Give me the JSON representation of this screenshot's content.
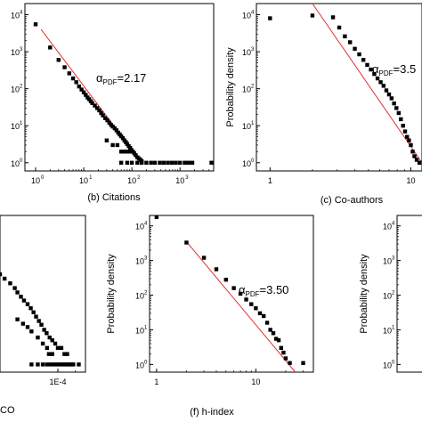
{
  "chart_data": [
    {
      "type": "scatter",
      "panel": "b",
      "xlabel": "(b) Citations",
      "ylabel": "",
      "x_scale": "log",
      "y_scale": "log",
      "xlim": [
        0.6,
        5000
      ],
      "ylim": [
        0.6,
        20000
      ],
      "x_ticks": [
        {
          "v": 1,
          "label": "10"
        },
        {
          "v": 10,
          "label": "10"
        },
        {
          "v": 100,
          "label": "10"
        },
        {
          "v": 1000,
          "label": "10"
        }
      ],
      "x_tick_exps": [
        "0",
        "1",
        "2",
        "3"
      ],
      "y_ticks": [
        {
          "v": 1,
          "label": "10"
        },
        {
          "v": 10,
          "label": "10"
        },
        {
          "v": 100,
          "label": "10"
        },
        {
          "v": 1000,
          "label": "10"
        },
        {
          "v": 10000,
          "label": "10"
        }
      ],
      "y_tick_exps": [
        "0",
        "1",
        "2",
        "3",
        "4"
      ],
      "annotation": {
        "prefix": "α",
        "sub": "PDF",
        "suffix": "=2.17"
      },
      "fit": {
        "x": [
          1.3,
          160
        ],
        "y": [
          4000,
          1
        ],
        "color": "#e03030"
      },
      "points": [
        [
          1,
          5500
        ],
        [
          2,
          1300
        ],
        [
          3,
          600
        ],
        [
          4,
          380
        ],
        [
          5,
          260
        ],
        [
          6,
          190
        ],
        [
          7,
          150
        ],
        [
          8,
          115
        ],
        [
          9,
          95
        ],
        [
          10,
          80
        ],
        [
          11,
          68
        ],
        [
          12,
          58
        ],
        [
          13,
          52
        ],
        [
          14,
          46
        ],
        [
          15,
          41
        ],
        [
          17,
          35
        ],
        [
          19,
          30
        ],
        [
          21,
          26
        ],
        [
          23,
          22
        ],
        [
          25,
          19
        ],
        [
          28,
          16
        ],
        [
          31,
          14
        ],
        [
          34,
          12
        ],
        [
          37,
          10.5
        ],
        [
          40,
          9.5
        ],
        [
          44,
          8.5
        ],
        [
          48,
          7.5
        ],
        [
          52,
          6.5
        ],
        [
          56,
          5.8
        ],
        [
          60,
          5.2
        ],
        [
          65,
          4.6
        ],
        [
          70,
          4
        ],
        [
          75,
          3.6
        ],
        [
          80,
          3.2
        ],
        [
          86,
          2.8
        ],
        [
          92,
          2.5
        ],
        [
          98,
          2.2
        ],
        [
          105,
          2
        ],
        [
          112,
          1.8
        ],
        [
          120,
          1.6
        ],
        [
          130,
          1.4
        ],
        [
          140,
          1.3
        ],
        [
          150,
          1.2
        ],
        [
          160,
          1.1
        ],
        [
          30,
          4
        ],
        [
          40,
          3
        ],
        [
          50,
          3
        ],
        [
          60,
          2
        ],
        [
          70,
          2
        ],
        [
          80,
          2
        ],
        [
          90,
          2
        ],
        [
          100,
          2
        ],
        [
          60,
          1
        ],
        [
          80,
          1
        ],
        [
          100,
          1
        ],
        [
          130,
          1
        ],
        [
          160,
          1
        ],
        [
          200,
          1
        ],
        [
          250,
          1
        ],
        [
          300,
          1
        ],
        [
          380,
          1
        ],
        [
          460,
          1
        ],
        [
          560,
          1
        ],
        [
          680,
          1
        ],
        [
          820,
          1
        ],
        [
          1000,
          1
        ],
        [
          1250,
          1
        ],
        [
          1500,
          1
        ],
        [
          1800,
          1
        ],
        [
          4500,
          1
        ]
      ]
    },
    {
      "type": "scatter",
      "panel": "c",
      "xlabel": "(c) Co-authors",
      "ylabel": "Probability density",
      "x_scale": "log",
      "y_scale": "log",
      "xlim": [
        0.8,
        12
      ],
      "ylim": [
        0.6,
        20000
      ],
      "x_ticks": [
        {
          "v": 1,
          "label": "1"
        },
        {
          "v": 10,
          "label": "10"
        }
      ],
      "x_tick_exps": [
        "",
        ""
      ],
      "y_ticks": [
        {
          "v": 1,
          "label": "10"
        },
        {
          "v": 10,
          "label": "10"
        },
        {
          "v": 100,
          "label": "10"
        },
        {
          "v": 1000,
          "label": "10"
        },
        {
          "v": 10000,
          "label": "10"
        }
      ],
      "y_tick_exps": [
        "0",
        "1",
        "2",
        "3",
        "4"
      ],
      "annotation": {
        "prefix": "α",
        "sub": "PDF",
        "suffix": "=3.5"
      },
      "fit": {
        "x": [
          2,
          12
        ],
        "y": [
          20000,
          1
        ],
        "color": "#e03030"
      },
      "points": [
        [
          1,
          8000
        ],
        [
          2,
          9500
        ],
        [
          2.8,
          8500
        ],
        [
          3.1,
          4500
        ],
        [
          3.4,
          2600
        ],
        [
          3.7,
          1800
        ],
        [
          4,
          1200
        ],
        [
          4.3,
          850
        ],
        [
          4.6,
          600
        ],
        [
          4.9,
          440
        ],
        [
          5.2,
          330
        ],
        [
          5.5,
          250
        ],
        [
          5.8,
          190
        ],
        [
          6.1,
          150
        ],
        [
          6.4,
          120
        ],
        [
          6.7,
          90
        ],
        [
          7,
          70
        ],
        [
          7.3,
          55
        ],
        [
          7.6,
          40
        ],
        [
          7.9,
          30
        ],
        [
          8.2,
          22
        ],
        [
          8.5,
          15
        ],
        [
          8.8,
          10
        ],
        [
          9.1,
          7
        ],
        [
          9.4,
          5
        ],
        [
          9.7,
          4
        ],
        [
          10,
          3
        ],
        [
          10.3,
          2
        ],
        [
          10.6,
          1.5
        ],
        [
          11,
          1.2
        ],
        [
          11.5,
          1
        ]
      ]
    },
    {
      "type": "scatter",
      "panel": "e",
      "xlabel": "CO",
      "ylabel": "",
      "x_scale": "log",
      "y_scale": "log",
      "xlim": [
        1e-05,
        0.0003
      ],
      "ylim": [
        0.6,
        20000
      ],
      "x_ticks": [
        {
          "v": 0.0001,
          "label": "1E-4"
        }
      ],
      "x_tick_exps": [
        ""
      ],
      "y_ticks": [],
      "y_tick_exps": [],
      "annotation": null,
      "fit": null,
      "points": [
        [
          1e-05,
          400
        ],
        [
          1.2e-05,
          300
        ],
        [
          1.5e-05,
          220
        ],
        [
          1.8e-05,
          160
        ],
        [
          2e-05,
          120
        ],
        [
          2.3e-05,
          90
        ],
        [
          2.6e-05,
          70
        ],
        [
          3e-05,
          55
        ],
        [
          3.4e-05,
          42
        ],
        [
          3.8e-05,
          32
        ],
        [
          4.2e-05,
          24
        ],
        [
          4.7e-05,
          18
        ],
        [
          5.2e-05,
          14
        ],
        [
          5.8e-05,
          10
        ],
        [
          6.4e-05,
          8
        ],
        [
          7.2e-05,
          6
        ],
        [
          8e-05,
          5
        ],
        [
          9e-05,
          4
        ],
        [
          0.0001,
          3
        ],
        [
          0.000115,
          3
        ],
        [
          0.00013,
          2
        ],
        [
          0.000145,
          2
        ],
        [
          2e-05,
          20
        ],
        [
          2.5e-05,
          15
        ],
        [
          3e-05,
          12
        ],
        [
          3.5e-05,
          9
        ],
        [
          4.5e-05,
          6
        ],
        [
          5.5e-05,
          4
        ],
        [
          6.5e-05,
          3
        ],
        [
          7e-05,
          2
        ],
        [
          8e-05,
          2
        ],
        [
          3.5e-05,
          1
        ],
        [
          4.5e-05,
          1
        ],
        [
          5.5e-05,
          1
        ],
        [
          6.5e-05,
          1
        ],
        [
          7.5e-05,
          1
        ],
        [
          8.5e-05,
          1
        ],
        [
          9.5e-05,
          1
        ],
        [
          0.000105,
          1
        ],
        [
          0.000115,
          1
        ],
        [
          0.000125,
          1
        ],
        [
          0.000135,
          1
        ],
        [
          0.000145,
          1
        ],
        [
          0.000155,
          1
        ],
        [
          0.000165,
          1
        ],
        [
          0.000175,
          1
        ],
        [
          0.000185,
          1
        ],
        [
          0.00023,
          1
        ]
      ]
    },
    {
      "type": "scatter",
      "panel": "f",
      "xlabel": "(f) h-index",
      "ylabel": "Probability density",
      "x_scale": "log",
      "y_scale": "log",
      "xlim": [
        0.85,
        38
      ],
      "ylim": [
        0.6,
        20000
      ],
      "x_ticks": [
        {
          "v": 1,
          "label": "1"
        },
        {
          "v": 10,
          "label": "10"
        }
      ],
      "x_tick_exps": [
        "",
        ""
      ],
      "y_ticks": [
        {
          "v": 1,
          "label": "10"
        },
        {
          "v": 10,
          "label": "10"
        },
        {
          "v": 100,
          "label": "10"
        },
        {
          "v": 1000,
          "label": "10"
        },
        {
          "v": 10000,
          "label": "10"
        }
      ],
      "y_tick_exps": [
        "0",
        "1",
        "2",
        "3",
        "4"
      ],
      "annotation": {
        "prefix": "α",
        "sub": "PDF",
        "suffix": "=3.50"
      },
      "fit": {
        "x": [
          2,
          25
        ],
        "y": [
          3500,
          0.6
        ],
        "color": "#e03030"
      },
      "points": [
        [
          1,
          18000
        ],
        [
          2,
          3300
        ],
        [
          3,
          1200
        ],
        [
          4,
          560
        ],
        [
          5,
          280
        ],
        [
          6,
          160
        ],
        [
          7,
          110
        ],
        [
          8,
          75
        ],
        [
          9,
          55
        ],
        [
          10,
          42
        ],
        [
          11,
          30
        ],
        [
          12,
          25
        ],
        [
          13,
          16
        ],
        [
          14,
          10
        ],
        [
          15,
          8
        ],
        [
          16,
          5.5
        ],
        [
          17,
          5
        ],
        [
          18,
          3
        ],
        [
          19,
          2.2
        ],
        [
          20,
          1.5
        ],
        [
          22,
          1.1
        ],
        [
          30,
          1.1
        ]
      ]
    },
    {
      "type": "scatter",
      "panel": "g",
      "xlabel": "",
      "ylabel": "Probability density",
      "x_scale": "log",
      "y_scale": "log",
      "xlim": [
        1,
        10
      ],
      "ylim": [
        0.6,
        20000
      ],
      "x_ticks": [],
      "x_tick_exps": [],
      "y_ticks": [
        {
          "v": 1,
          "label": "10"
        },
        {
          "v": 10,
          "label": "10"
        },
        {
          "v": 100,
          "label": "10"
        },
        {
          "v": 1000,
          "label": "10"
        },
        {
          "v": 10000,
          "label": "10"
        }
      ],
      "y_tick_exps": [
        "0",
        "1",
        "2",
        "3",
        "4"
      ],
      "annotation": null,
      "fit": null,
      "points": []
    }
  ]
}
